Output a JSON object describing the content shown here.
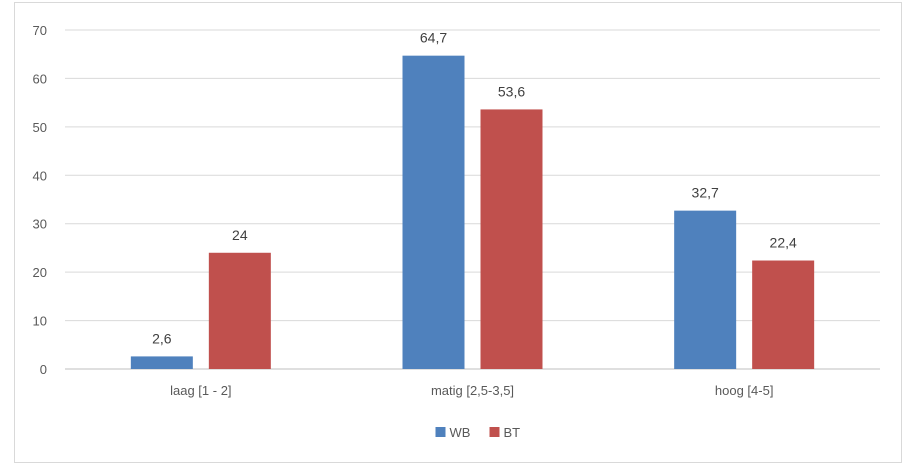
{
  "chart_data": {
    "type": "bar",
    "categories": [
      "laag [1 - 2]",
      "matig [2,5-3,5]",
      "hoog [4-5]"
    ],
    "series": [
      {
        "name": "WB",
        "values": [
          2.6,
          64.7,
          32.7
        ],
        "labels": [
          "2,6",
          "64,7",
          "32,7"
        ],
        "color": "#4f81bd"
      },
      {
        "name": "BT",
        "values": [
          24,
          53.6,
          22.4
        ],
        "labels": [
          "24",
          "53,6",
          "22,4"
        ],
        "color": "#c0504d"
      }
    ],
    "ylim": [
      0,
      70
    ],
    "yticks": [
      "0",
      "10",
      "20",
      "30",
      "40",
      "50",
      "60",
      "70"
    ],
    "title": "",
    "xlabel": "",
    "ylabel": "",
    "grid": true,
    "legend_position": "bottom"
  }
}
